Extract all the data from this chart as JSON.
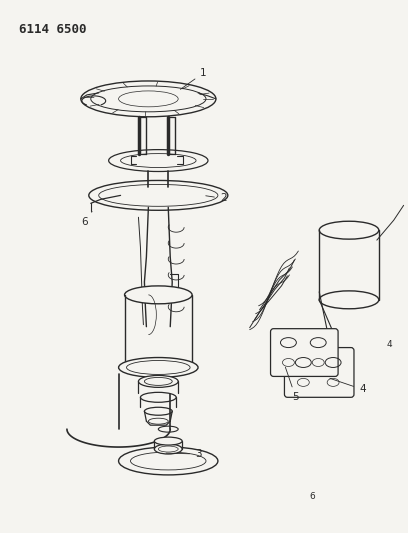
{
  "title": "6114 6500",
  "bg_color": "#f5f4f0",
  "line_color": "#2a2a2a",
  "title_fontsize": 9,
  "label_fontsize": 7.5,
  "figsize": [
    4.08,
    5.33
  ],
  "dpi": 100
}
